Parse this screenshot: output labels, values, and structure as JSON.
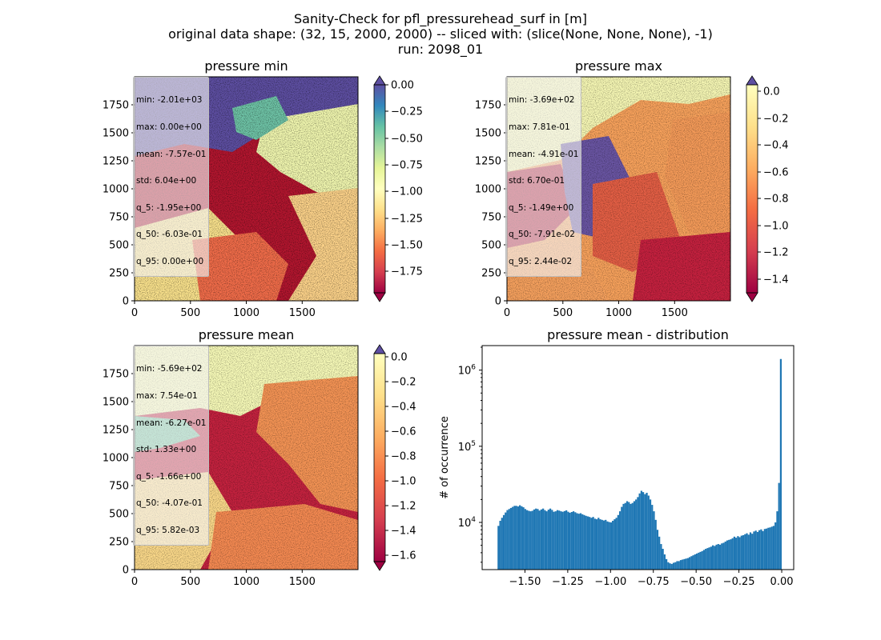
{
  "figure": {
    "title_lines": [
      "Sanity-Check for pfl_pressurehead_surf in [m]",
      "original data shape: (32, 15, 2000, 2000) -- sliced with: (slice(None, None, None), -1)",
      "run: 2098_01"
    ]
  },
  "panels": [
    {
      "id": "min",
      "title": "pressure min",
      "x_ticks": [
        "0",
        "500",
        "1000",
        "1500"
      ],
      "y_ticks": [
        "0",
        "250",
        "500",
        "750",
        "1000",
        "1250",
        "1500",
        "1750"
      ],
      "colorbar_ticks": [
        "0.00",
        "−0.25",
        "−0.50",
        "−0.75",
        "−1.00",
        "−1.25",
        "−1.50",
        "−1.75"
      ],
      "colorbar_range": [
        -1.95,
        0.0
      ],
      "colorbar_extend": "both",
      "stats": [
        "min: -2.01e+03",
        "max: 0.00e+00",
        "mean: -7.57e-01",
        "std: 6.04e+00",
        "q_5: -1.95e+00",
        "q_50: -6.03e-01",
        "q_95: 0.00e+00"
      ]
    },
    {
      "id": "max",
      "title": "pressure max",
      "x_ticks": [
        "0",
        "500",
        "1000",
        "1500"
      ],
      "y_ticks": [
        "0",
        "250",
        "500",
        "750",
        "1000",
        "1250",
        "1500",
        "1750"
      ],
      "colorbar_ticks": [
        "0.0",
        "−0.2",
        "−0.4",
        "−0.6",
        "−0.8",
        "−1.0",
        "−1.2",
        "−1.4"
      ],
      "colorbar_range": [
        -1.49,
        0.0244
      ],
      "colorbar_extend": "both",
      "stats": [
        "min: -3.69e+02",
        "max: 7.81e-01",
        "mean: -4.91e-01",
        "std: 6.70e-01",
        "q_5: -1.49e+00",
        "q_50: -7.91e-02",
        "q_95: 2.44e-02"
      ]
    },
    {
      "id": "mean",
      "title": "pressure mean",
      "x_ticks": [
        "0",
        "500",
        "1000",
        "1500"
      ],
      "y_ticks": [
        "0",
        "250",
        "500",
        "750",
        "1000",
        "1250",
        "1500",
        "1750"
      ],
      "colorbar_ticks": [
        "0.0",
        "−0.2",
        "−0.4",
        "−0.6",
        "−0.8",
        "−1.0",
        "−1.2",
        "−1.4",
        "−1.6"
      ],
      "colorbar_range": [
        -1.66,
        0.0058
      ],
      "colorbar_extend": "both",
      "stats": [
        "min: -5.69e+02",
        "max: 7.54e-01",
        "mean: -6.27e-01",
        "std: 1.33e+00",
        "q_5: -1.66e+00",
        "q_50: -4.07e-01",
        "q_95: 5.82e-03"
      ]
    }
  ],
  "chart_data": {
    "type": "bar",
    "title": "pressure mean - distribution",
    "xlabel": "",
    "ylabel": "# of occurrence",
    "y_scale": "log",
    "x_ticks": [
      "−1.50",
      "−1.25",
      "−1.00",
      "−0.75",
      "−0.50",
      "−0.25",
      "0.00"
    ],
    "y_ticks": [
      "10^4",
      "10^5",
      "10^6"
    ],
    "xlim": [
      -1.75,
      0.07
    ],
    "ylim": [
      2400,
      2100000
    ],
    "color": "#1f77b4",
    "bin_start": -1.66,
    "bin_end": 0.0,
    "counts": [
      9000,
      10500,
      11500,
      12500,
      13500,
      14500,
      15000,
      15500,
      16000,
      16500,
      16500,
      16200,
      16800,
      16300,
      15800,
      15000,
      14500,
      14200,
      14000,
      14200,
      14800,
      15200,
      15000,
      14300,
      14800,
      15200,
      14500,
      14000,
      14700,
      15200,
      14600,
      13800,
      14000,
      14500,
      14300,
      14000,
      13800,
      14100,
      14400,
      13800,
      13400,
      13700,
      14000,
      13600,
      13200,
      13000,
      13200,
      12800,
      12500,
      12200,
      12000,
      11800,
      11500,
      11800,
      11200,
      11000,
      11500,
      11000,
      10800,
      10600,
      10800,
      10300,
      10100,
      10000,
      10500,
      11000,
      11500,
      12500,
      14000,
      16000,
      17500,
      18000,
      19000,
      18500,
      17500,
      18000,
      19000,
      20000,
      21500,
      24000,
      26000,
      25000,
      23500,
      24500,
      22500,
      20000,
      17000,
      14000,
      10800,
      8000,
      6500,
      5200,
      4500,
      3800,
      3300,
      3000,
      2900,
      2850,
      2950,
      3000,
      3100,
      3100,
      3200,
      3250,
      3300,
      3350,
      3400,
      3500,
      3600,
      3700,
      3800,
      3900,
      4000,
      4100,
      4200,
      4350,
      4500,
      4600,
      4700,
      4800,
      5000,
      4900,
      5100,
      5200,
      5100,
      5300,
      5400,
      5600,
      5800,
      5900,
      6000,
      6200,
      6500,
      6300,
      6600,
      6400,
      6700,
      6800,
      7000,
      7200,
      6900,
      7400,
      7100,
      7600,
      7800,
      7500,
      7900,
      8100,
      7700,
      8200,
      8300,
      8500,
      8600,
      8800,
      9000,
      10000,
      14000,
      33000,
      1400000
    ]
  }
}
